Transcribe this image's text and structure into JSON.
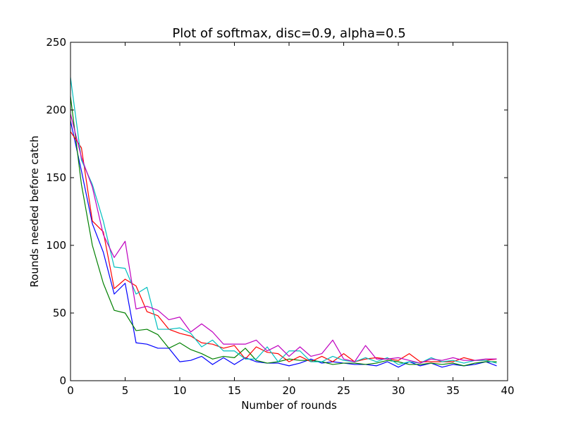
{
  "chart_data": {
    "type": "line",
    "title": "Plot of softmax, disc=0.9, alpha=0.5",
    "xlabel": "Number of rounds",
    "ylabel": "Rounds needed before catch",
    "xlim": [
      0,
      40
    ],
    "ylim": [
      0,
      250
    ],
    "xticks": [
      0,
      5,
      10,
      15,
      20,
      25,
      30,
      35,
      40
    ],
    "yticks": [
      0,
      50,
      100,
      150,
      200,
      250
    ],
    "grid": false,
    "legend": "none",
    "x": [
      0,
      1,
      2,
      3,
      4,
      5,
      6,
      7,
      8,
      9,
      10,
      11,
      12,
      13,
      14,
      15,
      16,
      17,
      18,
      19,
      20,
      21,
      22,
      23,
      24,
      25,
      26,
      27,
      28,
      29,
      30,
      31,
      32,
      33,
      34,
      35,
      36,
      37,
      38,
      39
    ],
    "series": [
      {
        "color": "#0000ff",
        "values": [
          192,
          155,
          116,
          95,
          64,
          72,
          28,
          27,
          24,
          24,
          14,
          15,
          18,
          12,
          17,
          12,
          17,
          14,
          13,
          13,
          11,
          13,
          16,
          13,
          14,
          13,
          12,
          12,
          11,
          14,
          10,
          14,
          11,
          13,
          10,
          12,
          11,
          12,
          14,
          11
        ]
      },
      {
        "color": "#008000",
        "values": [
          210,
          145,
          100,
          72,
          52,
          50,
          37,
          38,
          34,
          24,
          28,
          23,
          20,
          16,
          18,
          17,
          24,
          15,
          13,
          14,
          16,
          15,
          15,
          14,
          12,
          13,
          13,
          12,
          13,
          15,
          14,
          12,
          12,
          13,
          12,
          13,
          11,
          13,
          14,
          14
        ]
      },
      {
        "color": "#ff0000",
        "values": [
          184,
          172,
          118,
          110,
          68,
          75,
          70,
          51,
          48,
          38,
          35,
          33,
          28,
          27,
          24,
          26,
          16,
          25,
          21,
          20,
          14,
          18,
          14,
          18,
          14,
          20,
          14,
          16,
          17,
          16,
          15,
          20,
          14,
          14,
          14,
          14,
          17,
          15,
          15,
          16
        ]
      },
      {
        "color": "#00bfbf",
        "values": [
          224,
          163,
          145,
          118,
          84,
          83,
          64,
          69,
          38,
          38,
          39,
          35,
          25,
          30,
          22,
          22,
          16,
          16,
          25,
          14,
          22,
          22,
          14,
          14,
          18,
          15,
          14,
          17,
          14,
          17,
          12,
          14,
          13,
          17,
          14,
          15,
          13,
          15,
          15,
          13
        ]
      },
      {
        "color": "#bf00bf",
        "values": [
          197,
          165,
          143,
          108,
          91,
          103,
          53,
          55,
          52,
          45,
          47,
          36,
          42,
          36,
          27,
          27,
          27,
          30,
          22,
          26,
          18,
          25,
          18,
          20,
          30,
          16,
          14,
          26,
          16,
          16,
          17,
          15,
          13,
          16,
          15,
          17,
          15,
          15,
          16,
          16
        ]
      }
    ]
  }
}
